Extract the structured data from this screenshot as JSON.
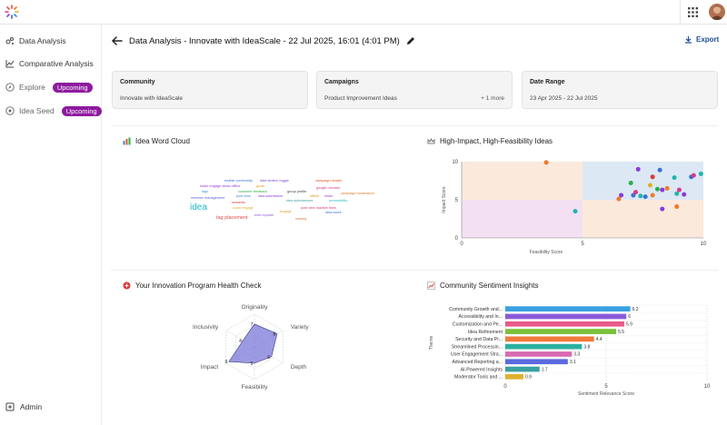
{
  "sidebar": {
    "items": [
      {
        "label": "Data Analysis",
        "icon": "analysis-icon"
      },
      {
        "label": "Comparative Analysis",
        "icon": "chart-icon"
      },
      {
        "label": "Explore",
        "icon": "compass-icon",
        "badge": "Upcoming"
      },
      {
        "label": "Idea Seed",
        "icon": "bulb-icon",
        "badge": "Upcoming"
      }
    ],
    "admin_label": "Admin"
  },
  "header": {
    "title": "Data Analysis - Innovate with IdeaScale - 22 Jul 2025, 16:01 (4:01 PM)",
    "export_label": "Export"
  },
  "filters": {
    "community": {
      "label": "Community",
      "value": "Innovate with IdeaScale"
    },
    "campaigns": {
      "label": "Campaigns",
      "value": "Product Improvement Ideas",
      "more": "+ 1 more"
    },
    "date_range": {
      "label": "Date Range",
      "value": "23 Apr 2025 - 22 Jul 2025"
    }
  },
  "sections": {
    "word_cloud": "Idea Word Cloud",
    "matrix": "High-Impact, High-Feasibility Ideas",
    "health": "Your Innovation Program Health Check",
    "sentiment": "Community Sentiment Insights"
  },
  "word_cloud_words": [
    {
      "text": "idea",
      "color": "#1fb5c9"
    },
    {
      "text": "tag placement",
      "color": "#e04a4a"
    },
    {
      "text": "enable community",
      "color": "#3a6fd8"
    },
    {
      "text": "data section toggle",
      "color": "#7a4ad8"
    },
    {
      "text": "share engage ideas offline",
      "color": "#9a3ad8"
    },
    {
      "text": "guide",
      "color": "#e0a020"
    },
    {
      "text": "campaign header",
      "color": "#e05a2a"
    },
    {
      "text": "tags",
      "color": "#2a9ad8"
    },
    {
      "text": "customer feedback",
      "color": "#2ab04a"
    },
    {
      "text": "group profile",
      "color": "#444444"
    },
    {
      "text": "google member",
      "color": "#d83a8a"
    },
    {
      "text": "member management",
      "color": "#5a5ad8"
    },
    {
      "text": "idea submission",
      "color": "#8a3ad8"
    },
    {
      "text": "offline",
      "color": "#d8a020"
    },
    {
      "text": "campaign moderators",
      "color": "#e07a2a"
    },
    {
      "text": "post view",
      "color": "#3a8ad8"
    },
    {
      "text": "idea submissions",
      "color": "#3aa0a0"
    },
    {
      "text": "share",
      "color": "#a03ad8"
    },
    {
      "text": "semantic",
      "color": "#d83a3a"
    },
    {
      "text": "accessibility",
      "color": "#2ac0c0"
    },
    {
      "text": "could engage",
      "color": "#e0b020"
    },
    {
      "text": "engage",
      "color": "#d8a030"
    },
    {
      "text": "post view inactive fixes",
      "color": "#d83a6a"
    },
    {
      "text": "emit reporter",
      "color": "#8a5ad8"
    },
    {
      "text": "idea count",
      "color": "#3a6ad8"
    },
    {
      "text": "markdy",
      "color": "#d87a3a"
    }
  ],
  "chart_data": [
    {
      "type": "scatter",
      "title": "High-Impact, High-Feasibility Ideas",
      "xlabel": "Feasibility Score",
      "ylabel": "Impact Score",
      "xlim": [
        0,
        10
      ],
      "ylim": [
        0,
        10
      ],
      "x_ticks": [
        "0",
        "5",
        "10"
      ],
      "y_ticks": [
        "0",
        "5",
        "10"
      ],
      "quadrant_colors": {
        "top_left": "#fbe9dc",
        "top_right": "#dce8f4",
        "bottom_left": "#f3e0f3",
        "bottom_right": "#fbe9dc"
      },
      "points": [
        {
          "x": 3.5,
          "y": 9.9,
          "color": "#f07a2a"
        },
        {
          "x": 4.7,
          "y": 3.5,
          "color": "#1fb5a9"
        },
        {
          "x": 6.5,
          "y": 5.1,
          "color": "#f07a2a"
        },
        {
          "x": 6.6,
          "y": 5.6,
          "color": "#8a3ad8"
        },
        {
          "x": 7.0,
          "y": 7.2,
          "color": "#2ab04a"
        },
        {
          "x": 7.1,
          "y": 5.6,
          "color": "#3a6fd8"
        },
        {
          "x": 7.2,
          "y": 6.0,
          "color": "#d83a8a"
        },
        {
          "x": 7.3,
          "y": 9.0,
          "color": "#8a3ad8"
        },
        {
          "x": 7.4,
          "y": 5.5,
          "color": "#1fb5a9"
        },
        {
          "x": 7.6,
          "y": 5.4,
          "color": "#3a6fd8"
        },
        {
          "x": 7.8,
          "y": 6.9,
          "color": "#e0b020"
        },
        {
          "x": 7.9,
          "y": 5.6,
          "color": "#f07a2a"
        },
        {
          "x": 7.9,
          "y": 8.0,
          "color": "#d83a3a"
        },
        {
          "x": 8.1,
          "y": 6.4,
          "color": "#2ab04a"
        },
        {
          "x": 8.2,
          "y": 8.9,
          "color": "#3a6fd8"
        },
        {
          "x": 8.3,
          "y": 6.3,
          "color": "#8a3ad8"
        },
        {
          "x": 8.3,
          "y": 3.8,
          "color": "#8a3ad8"
        },
        {
          "x": 8.5,
          "y": 6.5,
          "color": "#f07a2a"
        },
        {
          "x": 8.8,
          "y": 7.9,
          "color": "#1fb5a9"
        },
        {
          "x": 8.9,
          "y": 5.8,
          "color": "#1fb5a9"
        },
        {
          "x": 8.9,
          "y": 4.1,
          "color": "#f07a2a"
        },
        {
          "x": 9.0,
          "y": 6.3,
          "color": "#d83a8a"
        },
        {
          "x": 9.2,
          "y": 5.7,
          "color": "#8a3ad8"
        },
        {
          "x": 9.5,
          "y": 8.0,
          "color": "#3a6fd8"
        },
        {
          "x": 9.6,
          "y": 8.2,
          "color": "#d83a8a"
        },
        {
          "x": 9.9,
          "y": 8.4,
          "color": "#1fb5a9"
        }
      ]
    },
    {
      "type": "radar",
      "title": "Your Innovation Program Health Check",
      "axes": [
        "Originality",
        "Variety",
        "Depth",
        "Feasibility",
        "Impact",
        "Inclusivity"
      ],
      "values": [
        7,
        8,
        6,
        5,
        9,
        4
      ],
      "max": 10,
      "color": "#7b78d8"
    },
    {
      "type": "bar",
      "orientation": "horizontal",
      "title": "Community Sentiment Insights",
      "xlabel": "Sentiment Relevance Score",
      "ylabel": "Theme",
      "xlim": [
        0,
        10
      ],
      "x_ticks": [
        "0",
        "5",
        "10"
      ],
      "categories": [
        "Community Growth and...",
        "Accessibility and In...",
        "Customization and Pe...",
        "Idea Refinement",
        "Security and Data Pr...",
        "Streamlined Processin...",
        "User Engagement Stra...",
        "Advanced Reporting a...",
        "AI-Powered Insights",
        "Moderator Tools and ..."
      ],
      "values": [
        6.2,
        6,
        5.9,
        5.5,
        4.4,
        3.8,
        3.3,
        3.1,
        1.7,
        0.9
      ],
      "value_labels": [
        "6.2",
        "6",
        "5.9",
        "5.5",
        "4.4",
        "3.8",
        "3.3",
        "3.1",
        "1.7",
        "0.9"
      ],
      "colors": [
        "#3aa0e0",
        "#8a5ad8",
        "#e85a8a",
        "#7ac03a",
        "#f07a3a",
        "#2ab0a0",
        "#d86ab0",
        "#5a6ae0",
        "#3aa0a0",
        "#e0b030"
      ]
    }
  ]
}
